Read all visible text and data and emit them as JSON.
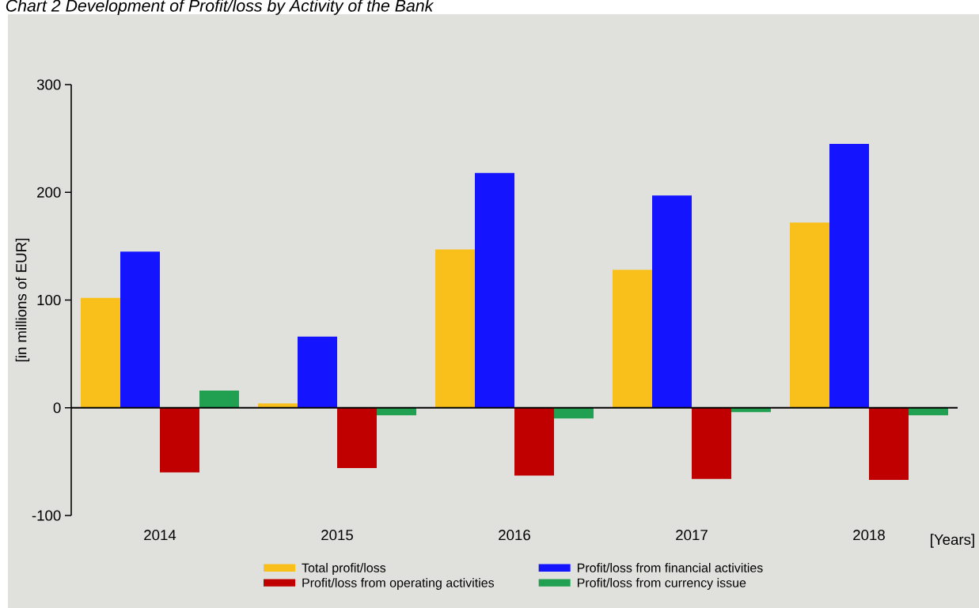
{
  "chart_data": {
    "type": "bar",
    "title": "Chart 2 Development of Profit/loss by Activity of the Bank",
    "ylabel": "[in millions of EUR]",
    "xlabel": "[Years]",
    "categories": [
      "2014",
      "2015",
      "2016",
      "2017",
      "2018"
    ],
    "series": [
      {
        "name": "Total profit/loss",
        "color": "#f9c01c",
        "values": [
          102,
          4,
          147,
          128,
          172
        ]
      },
      {
        "name": "Profit/loss from financial activities",
        "color": "#1414ff",
        "values": [
          145,
          66,
          218,
          197,
          245
        ]
      },
      {
        "name": "Profit/loss from operating activities",
        "color": "#c00000",
        "values": [
          -60,
          -56,
          -63,
          -66,
          -67
        ]
      },
      {
        "name": "Profit/loss from currency issue",
        "color": "#20a050",
        "values": [
          16,
          -7,
          -10,
          -4,
          -7
        ]
      }
    ],
    "ylim": [
      -100,
      300
    ],
    "yticks": [
      -100,
      0,
      100,
      200,
      300
    ],
    "legend": "bottom"
  }
}
